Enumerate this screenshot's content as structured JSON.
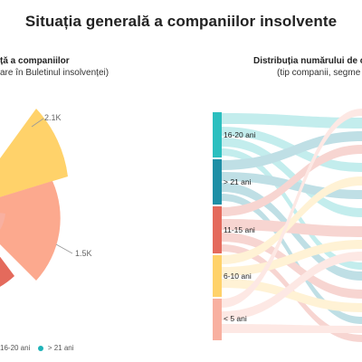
{
  "title": "Situația generală a companiilor insolvente",
  "left_panel": {
    "heading": "ță a companiilor",
    "subtitle": "are în Buletinul insolvenței)"
  },
  "right_panel": {
    "heading": "Distribuția numărului de c",
    "subtitle": "(tip companii, segme"
  },
  "colors": {
    "c_16_20": "#2bbfbf",
    "c_21": "#1e8fa6",
    "c_11_15": "#e46a5c",
    "c_6_10": "#ffd26a",
    "c_lt5": "#f8b0a0",
    "c_salmon": "#fca98e"
  },
  "chart_data": [
    {
      "type": "pie",
      "title": "",
      "data_labels": [
        "2.1K",
        "1.5K"
      ],
      "legend": [
        "16-20 ani",
        "> 21 ani"
      ],
      "legend_placement": "bottom"
    },
    {
      "type": "sankey",
      "title": "",
      "nodes": [
        "16-20 ani",
        "> 21 ani",
        "11-15 ani",
        "6-10 ani",
        "< 5 ani"
      ]
    }
  ]
}
